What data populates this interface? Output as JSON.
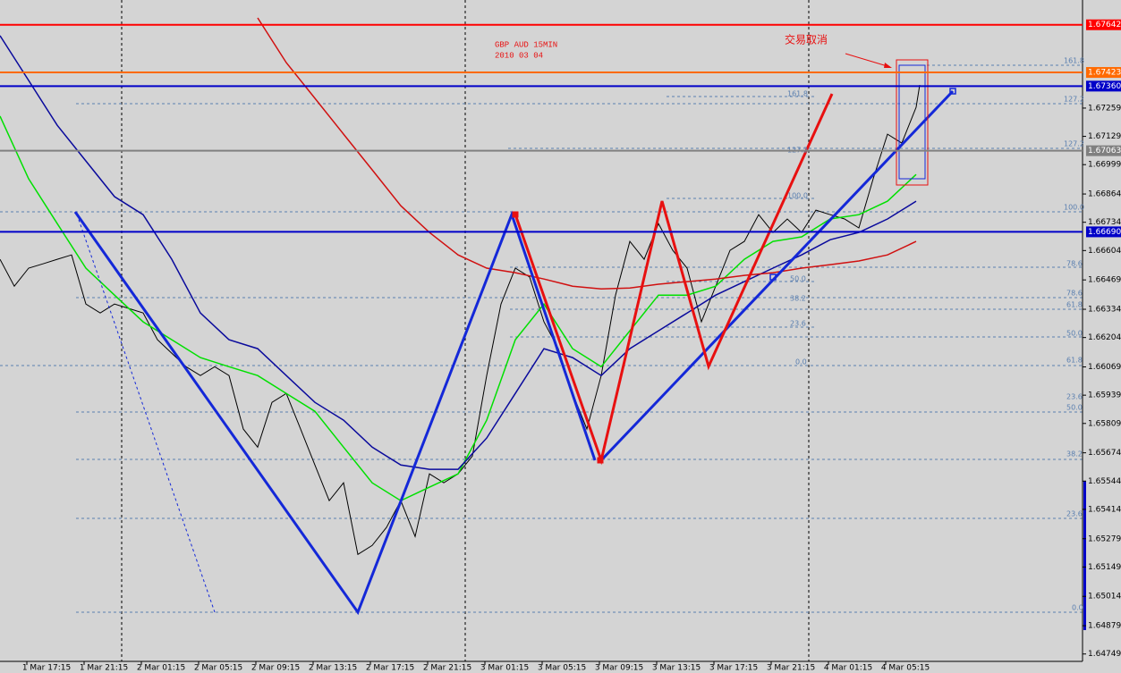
{
  "chart_data": {
    "type": "line",
    "title": "GBP AUD 15MIN",
    "subtitle": "2010 03 04",
    "note": "交易取消",
    "xlim": [
      0,
      302.5
    ],
    "ylim": [
      1.64715,
      1.67756
    ],
    "xticks": [
      {
        "value": 13,
        "label": "1 Mar 17:15"
      },
      {
        "value": 29,
        "label": "1 Mar 21:15"
      },
      {
        "value": 45,
        "label": "2 Mar 01:15"
      },
      {
        "value": 61,
        "label": "2 Mar 05:15"
      },
      {
        "value": 77,
        "label": "2 Mar 09:15"
      },
      {
        "value": 93,
        "label": "2 Mar 13:15"
      },
      {
        "value": 109,
        "label": "2 Mar 17:15"
      },
      {
        "value": 125,
        "label": "2 Mar 21:15"
      },
      {
        "value": 141,
        "label": "3 Mar 01:15"
      },
      {
        "value": 157,
        "label": "3 Mar 05:15"
      },
      {
        "value": 173,
        "label": "3 Mar 09:15"
      },
      {
        "value": 189,
        "label": "3 Mar 13:15"
      },
      {
        "value": 205,
        "label": "3 Mar 17:15"
      },
      {
        "value": 221,
        "label": "3 Mar 21:15"
      },
      {
        "value": 237,
        "label": "4 Mar 01:15"
      },
      {
        "value": 253,
        "label": "4 Mar 05:15"
      }
    ],
    "yticks": [
      1.67259,
      1.67129,
      1.66999,
      1.66864,
      1.66734,
      1.66604,
      1.66469,
      1.66334,
      1.66204,
      1.66069,
      1.65939,
      1.65809,
      1.65674,
      1.65544,
      1.65414,
      1.65279,
      1.65149,
      1.65014,
      1.64879,
      1.64749
    ],
    "levels": [
      {
        "value": 1.67642,
        "color": "#ff0000"
      },
      {
        "value": 1.67423,
        "color": "#ff6a00"
      },
      {
        "value": {
          "value": 1.6736,
          "label": "1.67360"
        },
        "color": "#0000c8"
      },
      {
        "value": 1.67063,
        "color": "#808080"
      },
      {
        "value": {
          "value": 1.6669,
          "label": "1.66690"
        },
        "color": "#0000c8"
      }
    ],
    "annotations": [
      "161.8",
      "127.2",
      "161.8",
      "127.2",
      "127.2",
      "100.0",
      "100.0",
      "78.6",
      "50.0",
      "78.6",
      "38.2",
      "61.8",
      "23.6",
      "50.0",
      "0.0",
      "61.8",
      "23.6",
      "50.0",
      "38.2",
      "23.6",
      "0.0"
    ],
    "series": [
      {
        "color": "#000000",
        "x": [
          0,
          4,
          8,
          12,
          16,
          20,
          24,
          28,
          32,
          36,
          40,
          44,
          48,
          52,
          56,
          60,
          64,
          68,
          72,
          76,
          80,
          84,
          88,
          92,
          96,
          100,
          104,
          108,
          112,
          116,
          120,
          124,
          128,
          132,
          136,
          140,
          144,
          148,
          152,
          156,
          160,
          164,
          168,
          172,
          176,
          180,
          184,
          188,
          192,
          196,
          200,
          204,
          208,
          212,
          216,
          220,
          224,
          228,
          232,
          236,
          240,
          244,
          248,
          252,
          256,
          257
        ],
        "values": [
          1.66564,
          1.6644,
          1.66523,
          1.66543,
          1.66564,
          1.66584,
          1.66358,
          1.66317,
          1.66358,
          1.66338,
          1.66317,
          1.66194,
          1.66132,
          1.6607,
          1.66029,
          1.6607,
          1.66029,
          1.65783,
          1.657,
          1.65906,
          1.65947,
          1.65783,
          1.65618,
          1.65454,
          1.65536,
          1.65207,
          1.65248,
          1.65331,
          1.65454,
          1.65289,
          1.65577,
          1.65536,
          1.65577,
          1.65659,
          1.66029,
          1.66358,
          1.66523,
          1.66482,
          1.66276,
          1.66153,
          1.65947,
          1.65783,
          1.66029,
          1.66399,
          1.66646,
          1.66564,
          1.66728,
          1.66605,
          1.66523,
          1.66276,
          1.6644,
          1.66605,
          1.66646,
          1.66769,
          1.66687,
          1.66749,
          1.66687,
          1.6679,
          1.66769,
          1.66749,
          1.66708,
          1.66934,
          1.67139,
          1.67098,
          1.67263,
          1.67365
        ]
      },
      {
        "color": "#00e000",
        "x": [
          0,
          8,
          16,
          24,
          32,
          40,
          48,
          56,
          64,
          72,
          80,
          88,
          96,
          104,
          112,
          120,
          128,
          136,
          144,
          152,
          160,
          168,
          176,
          184,
          192,
          200,
          208,
          216,
          224,
          232,
          240,
          248,
          256
        ],
        "values": [
          1.67222,
          1.66934,
          1.66728,
          1.66523,
          1.66399,
          1.66276,
          1.66194,
          1.66112,
          1.6607,
          1.66029,
          1.65947,
          1.65865,
          1.657,
          1.65536,
          1.65454,
          1.65516,
          1.65577,
          1.65824,
          1.66194,
          1.66358,
          1.66153,
          1.6607,
          1.66235,
          1.66399,
          1.66399,
          1.6644,
          1.66564,
          1.66646,
          1.66667,
          1.66749,
          1.66769,
          1.66831,
          1.66954
        ]
      },
      {
        "color": "#0a0a9c",
        "x": [
          0,
          8,
          16,
          24,
          32,
          40,
          48,
          56,
          64,
          72,
          80,
          88,
          96,
          104,
          112,
          120,
          128,
          136,
          144,
          152,
          160,
          168,
          176,
          184,
          192,
          200,
          208,
          216,
          224,
          232,
          240,
          248,
          256
        ],
        "values": [
          1.67592,
          1.67386,
          1.6718,
          1.67016,
          1.66852,
          1.66769,
          1.66564,
          1.66317,
          1.66194,
          1.66153,
          1.66029,
          1.65906,
          1.65824,
          1.657,
          1.65618,
          1.65598,
          1.65598,
          1.65742,
          1.65947,
          1.66153,
          1.66112,
          1.66029,
          1.66153,
          1.66235,
          1.66317,
          1.66399,
          1.66461,
          1.66523,
          1.66584,
          1.66654,
          1.66687,
          1.66749,
          1.66831
        ]
      },
      {
        "color": "#d01010",
        "x": [
          72,
          80,
          88,
          96,
          104,
          112,
          120,
          128,
          136,
          144,
          152,
          160,
          168,
          176,
          184,
          192,
          200,
          208,
          216,
          224,
          232,
          240,
          248,
          256
        ],
        "values": [
          1.67674,
          1.67468,
          1.67304,
          1.67139,
          1.66975,
          1.6681,
          1.66687,
          1.66584,
          1.66523,
          1.66502,
          1.66473,
          1.6644,
          1.66428,
          1.66432,
          1.66449,
          1.66461,
          1.66473,
          1.6649,
          1.66502,
          1.66523,
          1.66539,
          1.66556,
          1.66584,
          1.66646
        ]
      }
    ]
  }
}
